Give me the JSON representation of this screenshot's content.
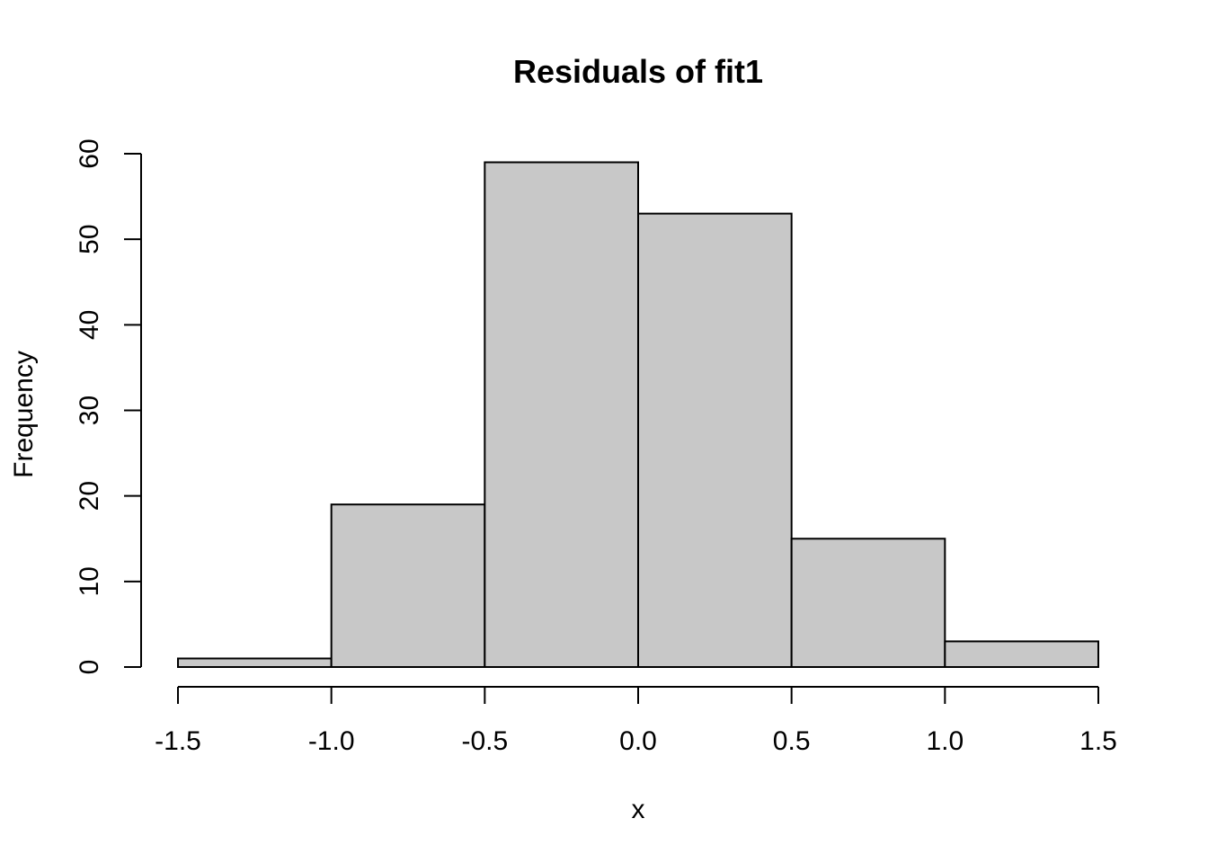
{
  "chart_data": {
    "type": "bar",
    "title": "Residuals of fit1",
    "xlabel": "x",
    "ylabel": "Frequency",
    "xlim": [
      -1.5,
      1.5
    ],
    "ylim": [
      0,
      60
    ],
    "x_ticks": [
      "-1.5",
      "-1.0",
      "-0.5",
      "0.0",
      "0.5",
      "1.0",
      "1.5"
    ],
    "y_ticks": [
      "0",
      "10",
      "20",
      "30",
      "40",
      "50",
      "60"
    ],
    "bins": [
      {
        "from": -1.5,
        "to": -1.0,
        "count": 1
      },
      {
        "from": -1.0,
        "to": -0.5,
        "count": 19
      },
      {
        "from": -0.5,
        "to": 0.0,
        "count": 59
      },
      {
        "from": 0.0,
        "to": 0.5,
        "count": 53
      },
      {
        "from": 0.5,
        "to": 1.0,
        "count": 15
      },
      {
        "from": 1.0,
        "to": 1.5,
        "count": 3
      }
    ],
    "bar_color": "#c8c8c8",
    "grid": false,
    "legend": "none"
  }
}
